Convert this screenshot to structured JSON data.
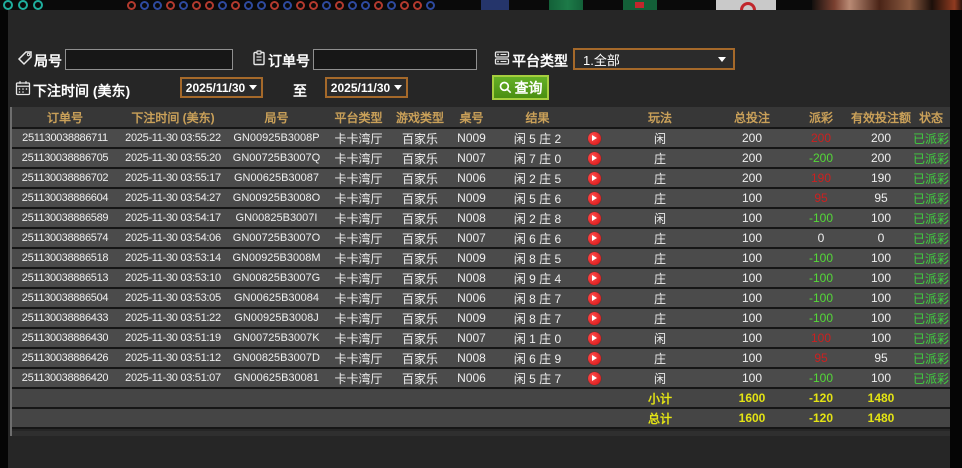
{
  "form": {
    "round_label": "局号",
    "round_value": "",
    "order_label": "订单号",
    "order_value": "",
    "platform_label": "平台类型",
    "platform_value": "1.全部",
    "bet_time_label": "下注时间 (美东)",
    "date_from": "2025/11/30",
    "to_label": "至",
    "date_to": "2025/11/30",
    "query_label": "查询"
  },
  "table": {
    "headers": [
      "订单号",
      "下注时间 (美东)",
      "局号",
      "平台类型",
      "游戏类型",
      "桌号",
      "结果",
      "玩法",
      "总投注",
      "派彩",
      "有效投注额",
      "状态"
    ],
    "rows": [
      {
        "order": "251130038886711",
        "time": "2025-11-30 03:55:22",
        "game_no": "GN00925B3008P",
        "platform": "卡卡湾厅",
        "game_type": "百家乐",
        "table_no": "N009",
        "result": "闲 5 庄 2",
        "play": "闲",
        "total_bet": "200",
        "payout": "200",
        "valid_bet": "200",
        "status": "已派彩"
      },
      {
        "order": "251130038886705",
        "time": "2025-11-30 03:55:20",
        "game_no": "GN00725B3007Q",
        "platform": "卡卡湾厅",
        "game_type": "百家乐",
        "table_no": "N007",
        "result": "闲 7 庄 0",
        "play": "庄",
        "total_bet": "200",
        "payout": "-200",
        "valid_bet": "200",
        "status": "已派彩"
      },
      {
        "order": "251130038886702",
        "time": "2025-11-30 03:55:17",
        "game_no": "GN00625B30087",
        "platform": "卡卡湾厅",
        "game_type": "百家乐",
        "table_no": "N006",
        "result": "闲 2 庄 5",
        "play": "庄",
        "total_bet": "200",
        "payout": "190",
        "valid_bet": "190",
        "status": "已派彩"
      },
      {
        "order": "251130038886604",
        "time": "2025-11-30 03:54:27",
        "game_no": "GN00925B3008O",
        "platform": "卡卡湾厅",
        "game_type": "百家乐",
        "table_no": "N009",
        "result": "闲 5 庄 6",
        "play": "庄",
        "total_bet": "100",
        "payout": "95",
        "valid_bet": "95",
        "status": "已派彩"
      },
      {
        "order": "251130038886589",
        "time": "2025-11-30 03:54:17",
        "game_no": "GN00825B3007I",
        "platform": "卡卡湾厅",
        "game_type": "百家乐",
        "table_no": "N008",
        "result": "闲 2 庄 8",
        "play": "闲",
        "total_bet": "100",
        "payout": "-100",
        "valid_bet": "100",
        "status": "已派彩"
      },
      {
        "order": "251130038886574",
        "time": "2025-11-30 03:54:06",
        "game_no": "GN00725B3007O",
        "platform": "卡卡湾厅",
        "game_type": "百家乐",
        "table_no": "N007",
        "result": "闲 6 庄 6",
        "play": "庄",
        "total_bet": "100",
        "payout": "0",
        "valid_bet": "0",
        "status": "已派彩"
      },
      {
        "order": "251130038886518",
        "time": "2025-11-30 03:53:14",
        "game_no": "GN00925B3008M",
        "platform": "卡卡湾厅",
        "game_type": "百家乐",
        "table_no": "N009",
        "result": "闲 8 庄 5",
        "play": "庄",
        "total_bet": "100",
        "payout": "-100",
        "valid_bet": "100",
        "status": "已派彩"
      },
      {
        "order": "251130038886513",
        "time": "2025-11-30 03:53:10",
        "game_no": "GN00825B3007G",
        "platform": "卡卡湾厅",
        "game_type": "百家乐",
        "table_no": "N008",
        "result": "闲 9 庄 4",
        "play": "庄",
        "total_bet": "100",
        "payout": "-100",
        "valid_bet": "100",
        "status": "已派彩"
      },
      {
        "order": "251130038886504",
        "time": "2025-11-30 03:53:05",
        "game_no": "GN00625B30084",
        "platform": "卡卡湾厅",
        "game_type": "百家乐",
        "table_no": "N006",
        "result": "闲 8 庄 7",
        "play": "庄",
        "total_bet": "100",
        "payout": "-100",
        "valid_bet": "100",
        "status": "已派彩"
      },
      {
        "order": "251130038886433",
        "time": "2025-11-30 03:51:22",
        "game_no": "GN00925B3008J",
        "platform": "卡卡湾厅",
        "game_type": "百家乐",
        "table_no": "N009",
        "result": "闲 8 庄 7",
        "play": "庄",
        "total_bet": "100",
        "payout": "-100",
        "valid_bet": "100",
        "status": "已派彩"
      },
      {
        "order": "251130038886430",
        "time": "2025-11-30 03:51:19",
        "game_no": "GN00725B3007K",
        "platform": "卡卡湾厅",
        "game_type": "百家乐",
        "table_no": "N007",
        "result": "闲 1 庄 0",
        "play": "闲",
        "total_bet": "100",
        "payout": "100",
        "valid_bet": "100",
        "status": "已派彩"
      },
      {
        "order": "251130038886426",
        "time": "2025-11-30 03:51:12",
        "game_no": "GN00825B3007D",
        "platform": "卡卡湾厅",
        "game_type": "百家乐",
        "table_no": "N008",
        "result": "闲 6 庄 9",
        "play": "庄",
        "total_bet": "100",
        "payout": "95",
        "valid_bet": "95",
        "status": "已派彩"
      },
      {
        "order": "251130038886420",
        "time": "2025-11-30 03:51:07",
        "game_no": "GN00625B30081",
        "platform": "卡卡湾厅",
        "game_type": "百家乐",
        "table_no": "N006",
        "result": "闲 5 庄 7",
        "play": "闲",
        "total_bet": "100",
        "payout": "-100",
        "valid_bet": "100",
        "status": "已派彩"
      }
    ],
    "subtotal": {
      "label": "小计",
      "total_bet": "1600",
      "payout": "-120",
      "valid_bet": "1480"
    },
    "total": {
      "label": "总计",
      "total_bet": "1600",
      "payout": "-120",
      "valid_bet": "1480"
    }
  },
  "colors": {
    "field_border_orange": "#a5692a",
    "query_button_green": "#4a8f12",
    "query_button_border": "#a6ce3e",
    "header_gold": "#c9a059",
    "win_red": "#cc2020",
    "loss_green": "#54d838",
    "paid_status_green": "#3fd03f",
    "summary_yellow": "#e3e314",
    "row_gray": "#4b4b4b"
  }
}
